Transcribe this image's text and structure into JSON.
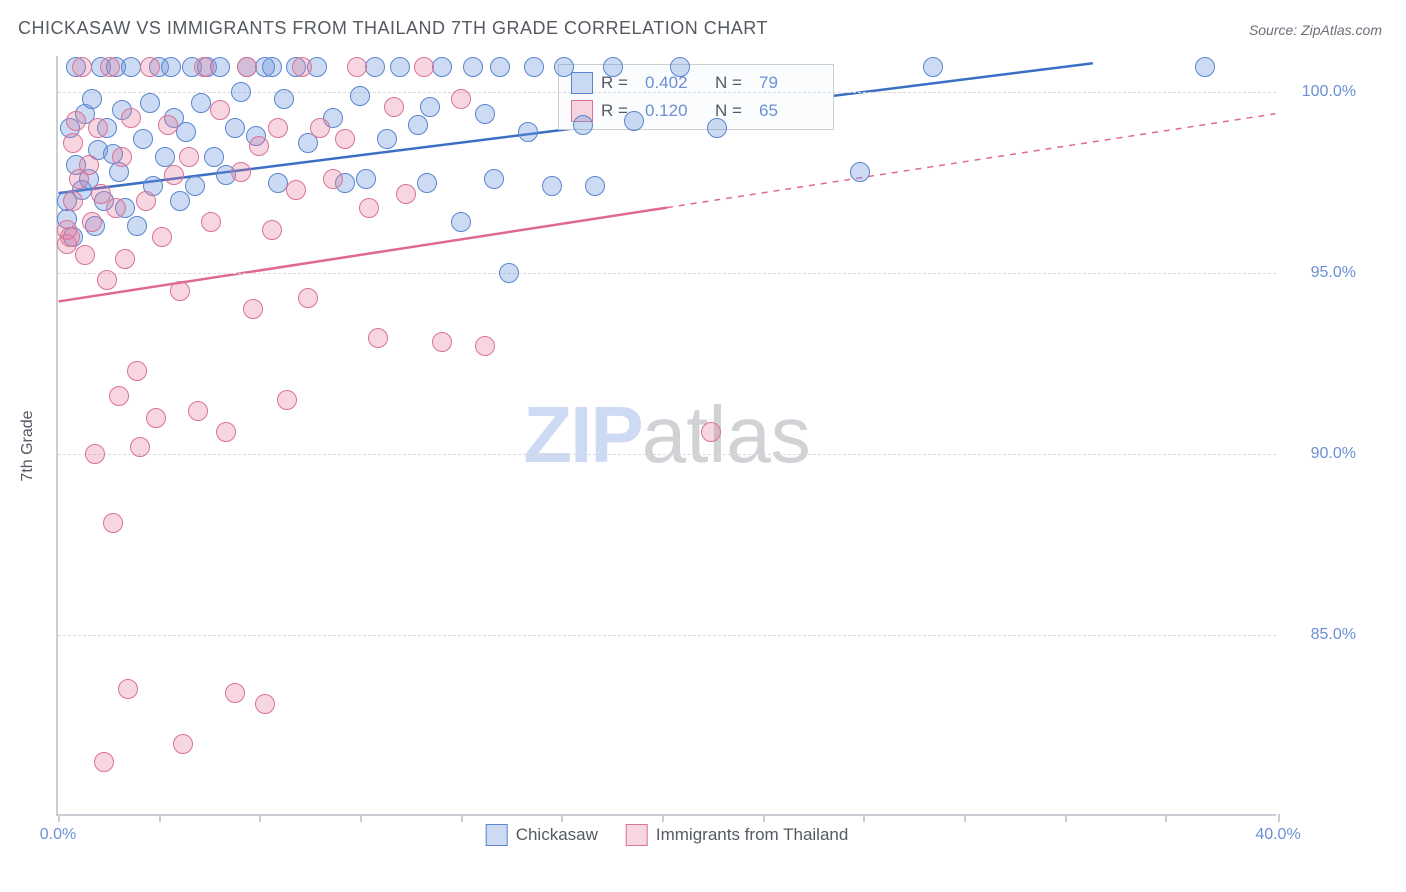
{
  "title": "CHICKASAW VS IMMIGRANTS FROM THAILAND 7TH GRADE CORRELATION CHART",
  "source": "Source: ZipAtlas.com",
  "ylabel": "7th Grade",
  "watermark": {
    "left": "ZIP",
    "right": "atlas"
  },
  "colors": {
    "text": "#555a63",
    "axis": "#c9cdd4",
    "grid": "#d6d9de",
    "tick_label": "#6b8fd6",
    "series1_fill": "rgba(108,151,220,0.35)",
    "series1_stroke": "#5a86cf",
    "series1_line": "#3b6fc4",
    "series2_fill": "rgba(231,120,155,0.30)",
    "series2_stroke": "#d87497",
    "series2_line": "#e06a8e",
    "background": "#ffffff"
  },
  "chart": {
    "type": "scatter",
    "xlim": [
      0,
      40
    ],
    "ylim": [
      80,
      101
    ],
    "xtick_positions": [
      0,
      3.3,
      6.6,
      9.9,
      13.2,
      16.5,
      19.8,
      23.1,
      26.4,
      29.7,
      33.0,
      36.3,
      40.0
    ],
    "xtick_labels": {
      "0": "0.0%",
      "40": "40.0%"
    },
    "ytick_positions": [
      85.0,
      90.0,
      95.0,
      100.0
    ],
    "ytick_labels": [
      "85.0%",
      "90.0%",
      "95.0%",
      "100.0%"
    ],
    "marker_radius": 10,
    "marker_opacity": 0.35,
    "line_width": 2.5
  },
  "series": [
    {
      "name": "Chickasaw",
      "color_key": "series1",
      "R": "0.402",
      "N": "79",
      "regression": {
        "x1": 0,
        "y1": 97.2,
        "x2": 34,
        "y2": 100.8,
        "dashed_from_x": null
      },
      "points": [
        [
          0.3,
          96.5
        ],
        [
          0.3,
          97.0
        ],
        [
          0.4,
          99.0
        ],
        [
          0.5,
          96.0
        ],
        [
          0.6,
          98.0
        ],
        [
          0.6,
          100.7
        ],
        [
          0.8,
          97.3
        ],
        [
          0.9,
          99.4
        ],
        [
          1.0,
          97.6
        ],
        [
          1.1,
          99.8
        ],
        [
          1.2,
          96.3
        ],
        [
          1.3,
          98.4
        ],
        [
          1.4,
          100.7
        ],
        [
          1.5,
          97.0
        ],
        [
          1.6,
          99.0
        ],
        [
          1.8,
          98.3
        ],
        [
          1.9,
          100.7
        ],
        [
          2.0,
          97.8
        ],
        [
          2.1,
          99.5
        ],
        [
          2.2,
          96.8
        ],
        [
          2.4,
          100.7
        ],
        [
          2.6,
          96.3
        ],
        [
          2.8,
          98.7
        ],
        [
          3.0,
          99.7
        ],
        [
          3.1,
          97.4
        ],
        [
          3.3,
          100.7
        ],
        [
          3.5,
          98.2
        ],
        [
          3.7,
          100.7
        ],
        [
          3.8,
          99.3
        ],
        [
          4.0,
          97.0
        ],
        [
          4.2,
          98.9
        ],
        [
          4.4,
          100.7
        ],
        [
          4.5,
          97.4
        ],
        [
          4.7,
          99.7
        ],
        [
          4.9,
          100.7
        ],
        [
          5.1,
          98.2
        ],
        [
          5.3,
          100.7
        ],
        [
          5.5,
          97.7
        ],
        [
          5.8,
          99.0
        ],
        [
          6.0,
          100.0
        ],
        [
          6.2,
          100.7
        ],
        [
          6.5,
          98.8
        ],
        [
          6.8,
          100.7
        ],
        [
          7.0,
          100.7
        ],
        [
          7.2,
          97.5
        ],
        [
          7.4,
          99.8
        ],
        [
          7.8,
          100.7
        ],
        [
          8.2,
          98.6
        ],
        [
          8.5,
          100.7
        ],
        [
          9.0,
          99.3
        ],
        [
          9.4,
          97.5
        ],
        [
          9.9,
          99.9
        ],
        [
          10.1,
          97.6
        ],
        [
          10.4,
          100.7
        ],
        [
          10.8,
          98.7
        ],
        [
          11.2,
          100.7
        ],
        [
          11.8,
          99.1
        ],
        [
          12.1,
          97.5
        ],
        [
          12.2,
          99.6
        ],
        [
          12.6,
          100.7
        ],
        [
          13.2,
          96.4
        ],
        [
          13.6,
          100.7
        ],
        [
          14.0,
          99.4
        ],
        [
          14.3,
          97.6
        ],
        [
          14.5,
          100.7
        ],
        [
          14.8,
          95.0
        ],
        [
          15.4,
          98.9
        ],
        [
          15.6,
          100.7
        ],
        [
          16.2,
          97.4
        ],
        [
          16.6,
          100.7
        ],
        [
          17.2,
          99.1
        ],
        [
          17.6,
          97.4
        ],
        [
          18.2,
          100.7
        ],
        [
          18.9,
          99.2
        ],
        [
          20.4,
          100.7
        ],
        [
          21.6,
          99.0
        ],
        [
          26.3,
          97.8
        ],
        [
          28.7,
          100.7
        ],
        [
          37.6,
          100.7
        ]
      ]
    },
    {
      "name": "Immigrants from Thailand",
      "color_key": "series2",
      "R": "0.120",
      "N": "65",
      "regression": {
        "x1": 0,
        "y1": 94.2,
        "x2": 40,
        "y2": 99.4,
        "dashed_from_x": 20
      },
      "points": [
        [
          0.3,
          96.2
        ],
        [
          0.3,
          95.8
        ],
        [
          0.4,
          96.0
        ],
        [
          0.5,
          98.6
        ],
        [
          0.5,
          97.0
        ],
        [
          0.6,
          99.2
        ],
        [
          0.7,
          97.6
        ],
        [
          0.8,
          100.7
        ],
        [
          0.9,
          95.5
        ],
        [
          1.0,
          98.0
        ],
        [
          1.1,
          96.4
        ],
        [
          1.2,
          90.0
        ],
        [
          1.3,
          99.0
        ],
        [
          1.4,
          97.2
        ],
        [
          1.5,
          81.5
        ],
        [
          1.6,
          94.8
        ],
        [
          1.7,
          100.7
        ],
        [
          1.8,
          88.1
        ],
        [
          1.9,
          96.8
        ],
        [
          2.0,
          91.6
        ],
        [
          2.1,
          98.2
        ],
        [
          2.2,
          95.4
        ],
        [
          2.3,
          83.5
        ],
        [
          2.4,
          99.3
        ],
        [
          2.6,
          92.3
        ],
        [
          2.7,
          90.2
        ],
        [
          2.9,
          97.0
        ],
        [
          3.0,
          100.7
        ],
        [
          3.2,
          91.0
        ],
        [
          3.4,
          96.0
        ],
        [
          3.6,
          99.1
        ],
        [
          3.8,
          97.7
        ],
        [
          4.0,
          94.5
        ],
        [
          4.1,
          82.0
        ],
        [
          4.3,
          98.2
        ],
        [
          4.6,
          91.2
        ],
        [
          4.8,
          100.7
        ],
        [
          5.0,
          96.4
        ],
        [
          5.3,
          99.5
        ],
        [
          5.5,
          90.6
        ],
        [
          5.8,
          83.4
        ],
        [
          6.0,
          97.8
        ],
        [
          6.2,
          100.7
        ],
        [
          6.4,
          94.0
        ],
        [
          6.6,
          98.5
        ],
        [
          6.8,
          83.1
        ],
        [
          7.0,
          96.2
        ],
        [
          7.2,
          99.0
        ],
        [
          7.5,
          91.5
        ],
        [
          7.8,
          97.3
        ],
        [
          8.0,
          100.7
        ],
        [
          8.2,
          94.3
        ],
        [
          8.6,
          99.0
        ],
        [
          9.0,
          97.6
        ],
        [
          9.4,
          98.7
        ],
        [
          9.8,
          100.7
        ],
        [
          10.2,
          96.8
        ],
        [
          10.5,
          93.2
        ],
        [
          11.0,
          99.6
        ],
        [
          11.4,
          97.2
        ],
        [
          12.0,
          100.7
        ],
        [
          12.6,
          93.1
        ],
        [
          13.2,
          99.8
        ],
        [
          14.0,
          93.0
        ],
        [
          21.4,
          90.6
        ]
      ]
    }
  ],
  "legend_top": {
    "rows": [
      {
        "swatch_key": "series1",
        "r_label": "R =",
        "r_val": "0.402",
        "n_label": "N =",
        "n_val": "79"
      },
      {
        "swatch_key": "series2",
        "r_label": "R =",
        "r_val": "0.120",
        "n_label": "N =",
        "n_val": "65"
      }
    ]
  },
  "legend_bottom": {
    "items": [
      {
        "swatch_key": "series1",
        "label": "Chickasaw"
      },
      {
        "swatch_key": "series2",
        "label": "Immigrants from Thailand"
      }
    ]
  }
}
